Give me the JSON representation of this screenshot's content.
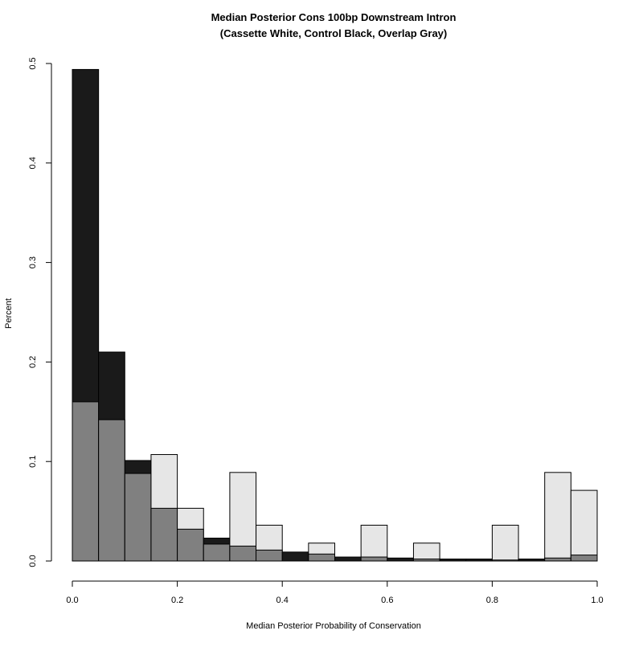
{
  "chart_data": {
    "type": "bar",
    "title": "Median Posterior Cons 100bp Downstream Intron",
    "subtitle": "(Cassette White, Control Black, Overlap Gray)",
    "xlabel": "Median Posterior Probability of Conservation",
    "ylabel": "Percent",
    "xlim": [
      0,
      1
    ],
    "ylim": [
      0,
      0.5
    ],
    "bin_width": 0.05,
    "bin_starts": [
      0,
      0.05,
      0.1,
      0.15,
      0.2,
      0.25,
      0.3,
      0.35,
      0.4,
      0.45,
      0.5,
      0.55,
      0.6,
      0.65,
      0.7,
      0.75,
      0.8,
      0.85,
      0.9,
      0.95
    ],
    "x_ticks": [
      "0.0",
      "0.2",
      "0.4",
      "0.6",
      "0.8",
      "1.0"
    ],
    "x_tick_values": [
      0,
      0.2,
      0.4,
      0.6,
      0.8,
      1.0
    ],
    "y_ticks": [
      "0.0",
      "0.1",
      "0.2",
      "0.3",
      "0.4",
      "0.5"
    ],
    "y_tick_values": [
      0,
      0.1,
      0.2,
      0.3,
      0.4,
      0.5
    ],
    "series": [
      {
        "name": "Cassette",
        "color": "#e6e6e6",
        "values": [
          0.16,
          0.142,
          0.088,
          0.107,
          0.053,
          0.017,
          0.089,
          0.036,
          0.0,
          0.018,
          0.0,
          0.036,
          0.0,
          0.018,
          0.0,
          0.0,
          0.036,
          0.0,
          0.089,
          0.071
        ]
      },
      {
        "name": "Control",
        "color": "#1a1a1a",
        "values": [
          0.494,
          0.21,
          0.101,
          0.053,
          0.032,
          0.023,
          0.015,
          0.011,
          0.009,
          0.007,
          0.004,
          0.004,
          0.003,
          0.002,
          0.002,
          0.002,
          0.001,
          0.002,
          0.003,
          0.006
        ]
      }
    ],
    "overlap_color": "#808080",
    "grid": false
  }
}
